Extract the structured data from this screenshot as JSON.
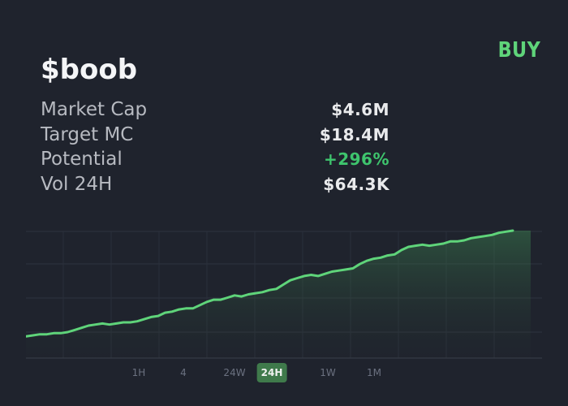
{
  "header": {
    "token": "$boob",
    "buy_label": "BUY"
  },
  "stats": [
    {
      "label": "Market Cap",
      "value": "$4.6M",
      "positive": false
    },
    {
      "label": "Target MC",
      "value": "$18.4M",
      "positive": false
    },
    {
      "label": "Potential",
      "value": "+296%",
      "positive": true
    },
    {
      "label": "Vol 24H",
      "value": "$64.3K",
      "positive": false
    }
  ],
  "timeframes": [
    {
      "label": "1H",
      "active": false
    },
    {
      "label": "4",
      "active": false
    },
    {
      "label": "24W",
      "active": false
    },
    {
      "label": "24H",
      "active": true
    },
    {
      "label": "1W",
      "active": false
    },
    {
      "label": "1M",
      "active": false
    }
  ],
  "colors": {
    "background": "#1f232d",
    "accent": "#5fd47a",
    "positive": "#3ec46d",
    "line": "#5fd47a"
  },
  "chart_data": {
    "type": "area",
    "title": "",
    "xlabel": "",
    "ylabel": "",
    "grid": true,
    "x": [
      0,
      1,
      2,
      3,
      4,
      5,
      6,
      7,
      8,
      9,
      10,
      11,
      12,
      13,
      14,
      15,
      16,
      17,
      18,
      19,
      20,
      21,
      22,
      23,
      24,
      25,
      26,
      27,
      28,
      29,
      30,
      31,
      32,
      33,
      34,
      35,
      36,
      37,
      38,
      39,
      40,
      41,
      42,
      43,
      44,
      45,
      46,
      47,
      48,
      49,
      50,
      51,
      52,
      53,
      54,
      55,
      56,
      57,
      58,
      59,
      60,
      61,
      62,
      63,
      64,
      65,
      66,
      67,
      68,
      69,
      70
    ],
    "values": [
      2,
      3,
      4,
      4,
      5,
      5,
      6,
      8,
      10,
      12,
      13,
      14,
      13,
      14,
      15,
      15,
      16,
      18,
      20,
      21,
      24,
      25,
      27,
      28,
      28,
      31,
      34,
      36,
      36,
      38,
      40,
      39,
      41,
      42,
      43,
      45,
      46,
      50,
      54,
      56,
      58,
      59,
      58,
      60,
      62,
      63,
      64,
      65,
      69,
      72,
      74,
      75,
      77,
      78,
      82,
      85,
      86,
      87,
      86,
      87,
      88,
      90,
      90,
      91,
      93,
      94,
      95,
      96,
      98,
      99,
      100
    ]
  }
}
